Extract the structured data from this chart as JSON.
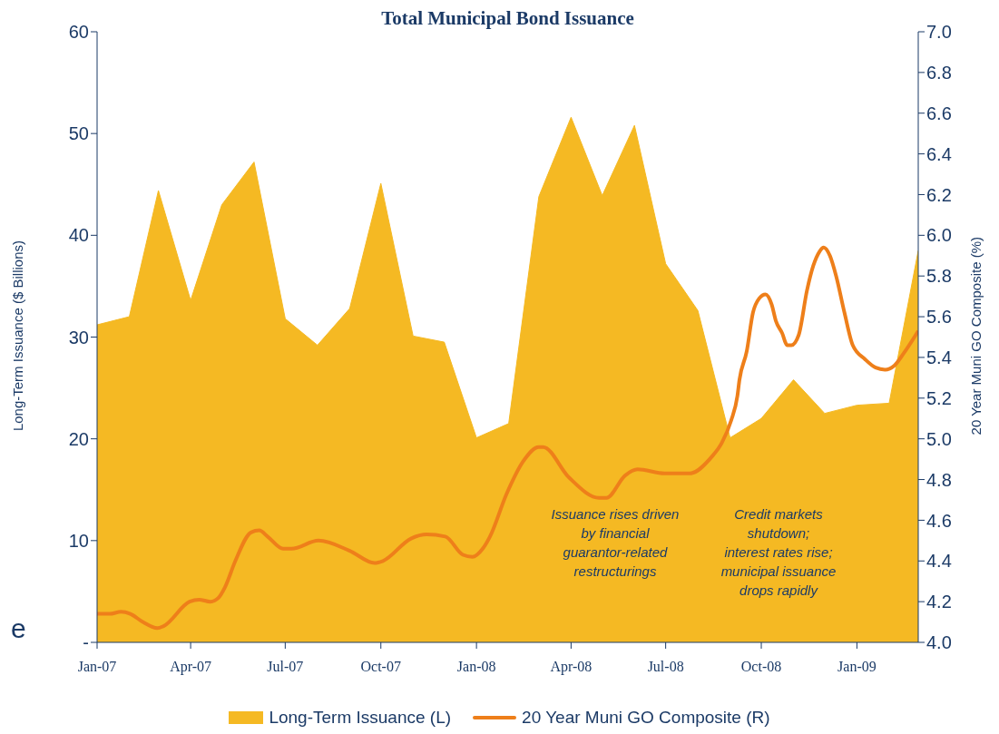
{
  "chart_data": {
    "type": "area",
    "title": "Total Municipal Bond Issuance",
    "ylabel": "Long-Term Issuance ($ Billions)",
    "y2label": "20 Year Muni GO Composite (%)",
    "x": [
      "2007-01",
      "2007-02",
      "2007-03",
      "2007-04",
      "2007-05",
      "2007-06",
      "2007-07",
      "2007-08",
      "2007-09",
      "2007-10",
      "2007-11",
      "2007-12",
      "2008-01",
      "2008-02",
      "2008-03",
      "2008-04",
      "2008-05",
      "2008-06",
      "2008-07",
      "2008-08",
      "2008-09",
      "2008-10",
      "2008-11",
      "2008-12",
      "2009-01",
      "2009-02",
      "2009-03"
    ],
    "series": [
      {
        "name": "Long-Term Issuance (L)",
        "color": "#f5b923",
        "values": [
          31.2,
          32.0,
          44.4,
          33.6,
          43.0,
          47.2,
          31.8,
          29.2,
          32.8,
          45.1,
          30.1,
          29.5,
          20.1,
          21.5,
          43.8,
          51.6,
          43.9,
          50.8,
          37.2,
          32.6,
          20.1,
          22.0,
          25.8,
          22.5,
          23.3,
          23.5,
          38.5
        ]
      },
      {
        "name": "20 Year Muni GO Composite (R)",
        "type": "line",
        "axis": "y2",
        "color": "#ee7f1a",
        "x": [
          "2007-01-01",
          "2007-01-13",
          "2007-01-24",
          "2007-02-02",
          "2007-02-14",
          "2007-02-28",
          "2007-03-06",
          "2007-03-31",
          "2007-04-09",
          "2007-04-20",
          "2007-04-28",
          "2007-05-04",
          "2007-05-14",
          "2007-05-29",
          "2007-06-06",
          "2007-06-14",
          "2007-06-29",
          "2007-07-07",
          "2007-08-02",
          "2007-09-01",
          "2007-09-25",
          "2007-10-03",
          "2007-10-30",
          "2007-11-14",
          "2007-12-02",
          "2007-12-19",
          "2007-12-28",
          "2008-01-07",
          "2008-01-14",
          "2008-01-30",
          "2008-02-15",
          "2008-03-01",
          "2008-03-05",
          "2008-03-30",
          "2008-04-28",
          "2008-05-05",
          "2008-05-23",
          "2008-06-04",
          "2008-06-30",
          "2008-07-24",
          "2008-08-14",
          "2008-08-24",
          "2008-09-02",
          "2008-09-08",
          "2008-09-10",
          "2008-09-17",
          "2008-09-23",
          "2008-09-29",
          "2008-10-05",
          "2008-10-11",
          "2008-10-15",
          "2008-10-21",
          "2008-10-26",
          "2008-10-30",
          "2008-11-06",
          "2008-11-14",
          "2008-11-20",
          "2008-11-26",
          "2008-11-30",
          "2008-12-06",
          "2008-12-12",
          "2008-12-20",
          "2008-12-28",
          "2009-01-09",
          "2009-01-19",
          "2009-01-28",
          "2009-02-06",
          "2009-02-15",
          "2009-03-01"
        ],
        "values": [
          4.14,
          4.14,
          4.15,
          4.14,
          4.1,
          4.07,
          4.08,
          4.2,
          4.21,
          4.2,
          4.22,
          4.27,
          4.4,
          4.54,
          4.55,
          4.52,
          4.46,
          4.46,
          4.5,
          4.45,
          4.39,
          4.4,
          4.51,
          4.53,
          4.52,
          4.43,
          4.42,
          4.46,
          4.52,
          4.73,
          4.89,
          4.96,
          4.96,
          4.81,
          4.71,
          4.71,
          4.82,
          4.85,
          4.83,
          4.83,
          4.91,
          4.98,
          5.09,
          5.21,
          5.29,
          5.43,
          5.62,
          5.69,
          5.71,
          5.66,
          5.58,
          5.52,
          5.46,
          5.46,
          5.51,
          5.73,
          5.85,
          5.92,
          5.94,
          5.9,
          5.8,
          5.62,
          5.46,
          5.39,
          5.35,
          5.34,
          5.36,
          5.42,
          5.53
        ]
      }
    ],
    "xlim": [
      "2007-01",
      "2009-03"
    ],
    "xticks": [
      {
        "value": "2007-01",
        "label": "Jan-07"
      },
      {
        "value": "2007-04",
        "label": "Apr-07"
      },
      {
        "value": "2007-07",
        "label": "Jul-07"
      },
      {
        "value": "2007-10",
        "label": "Oct-07"
      },
      {
        "value": "2008-01",
        "label": "Jan-08"
      },
      {
        "value": "2008-04",
        "label": "Apr-08"
      },
      {
        "value": "2008-07",
        "label": "Jul-08"
      },
      {
        "value": "2008-10",
        "label": "Oct-08"
      },
      {
        "value": "2009-01",
        "label": "Jan-09"
      }
    ],
    "ylim": [
      0,
      60
    ],
    "yticks": [
      {
        "value": 0,
        "label": "-"
      },
      10,
      20,
      30,
      40,
      50,
      60
    ],
    "y2lim": [
      4,
      7
    ],
    "y2ticks": [
      {
        "value": 4,
        "label": "4.0"
      },
      4.2,
      4.4,
      4.6,
      4.8,
      {
        "value": 5,
        "label": "5.0"
      },
      5.2,
      5.4,
      5.6,
      5.8,
      {
        "value": 6,
        "label": "6.0"
      },
      6.2,
      6.4,
      6.6,
      6.8,
      {
        "value": 7,
        "label": "7.0"
      }
    ],
    "annotations": [
      "Issuance rises driven\nby financial\nguarantor-related\nrestructurings",
      "Credit markets\nshutdown;\ninterest rates rise;\nmunicipal issuance\ndrops rapidly",
      "e"
    ],
    "grid": false,
    "legend": "bottom",
    "marker": "none",
    "line_style": "solid"
  }
}
